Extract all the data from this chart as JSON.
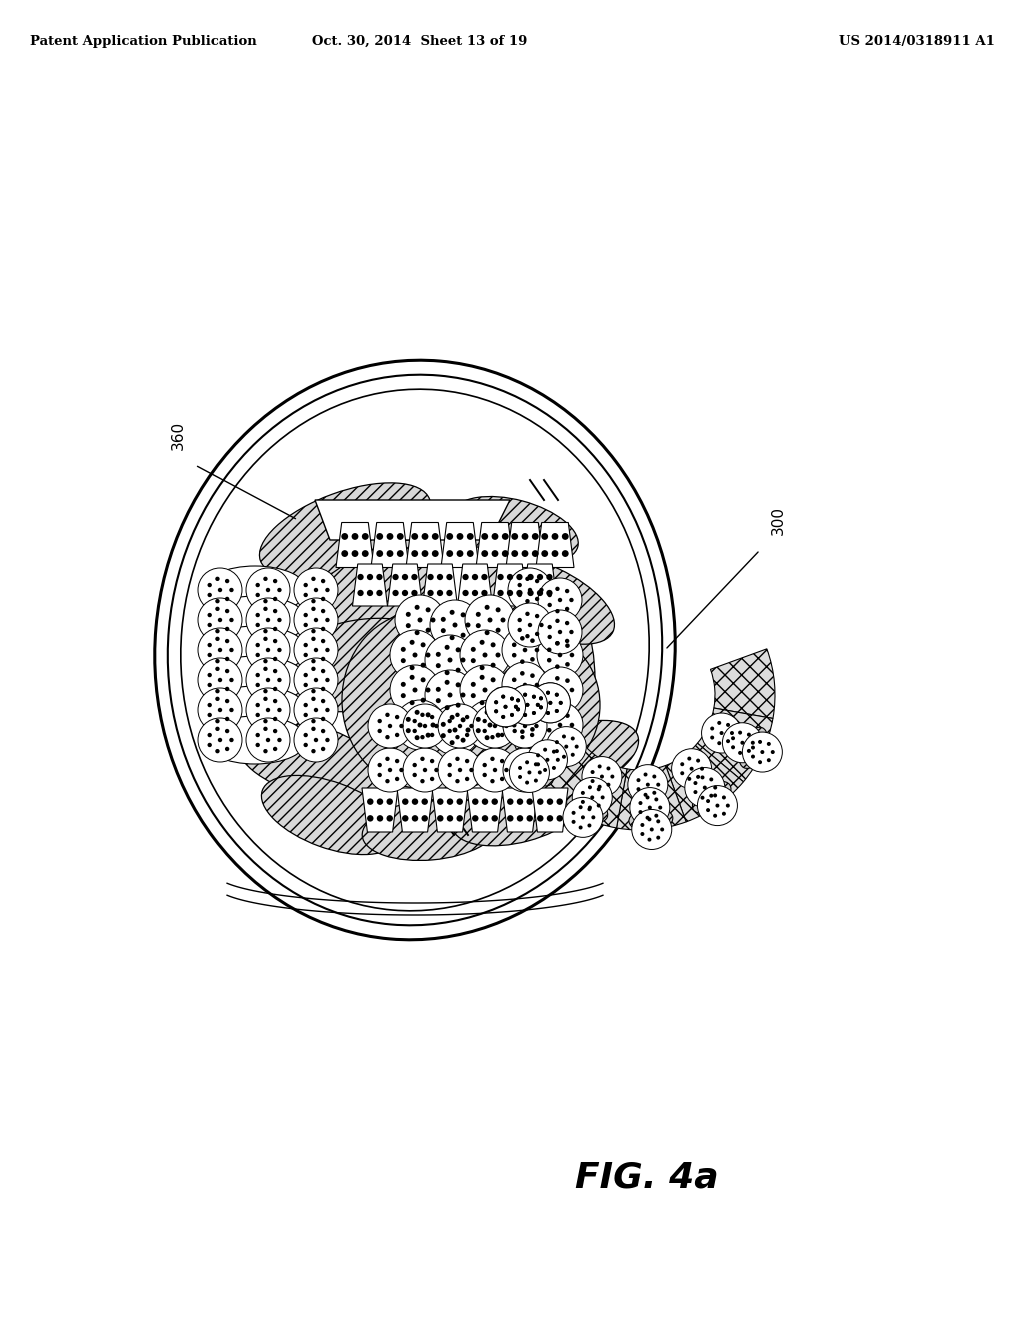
{
  "title_left": "Patent Application Publication",
  "title_center": "Oct. 30, 2014  Sheet 13 of 19",
  "title_right": "US 2014/0318911 A1",
  "fig_label": "FIG. 4a",
  "label_360": "360",
  "label_300": "300",
  "bg_color": "#ffffff",
  "line_color": "#000000"
}
